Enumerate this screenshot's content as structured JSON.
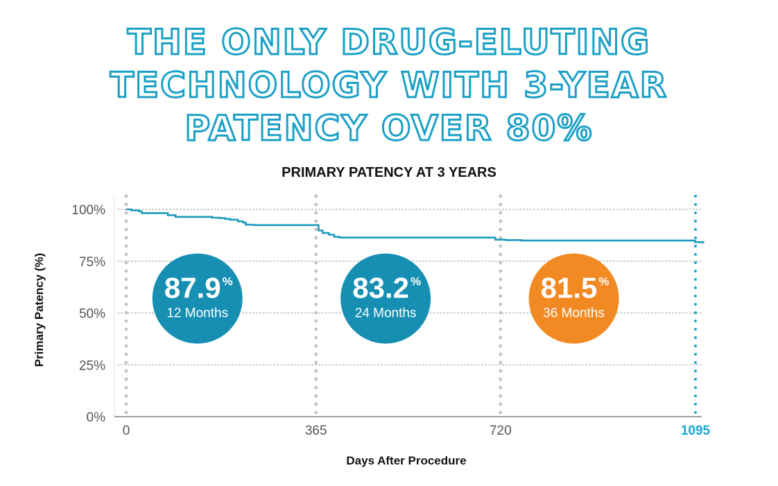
{
  "headline": {
    "line1": "THE ONLY DRUG-ELUTING",
    "line2": "TECHNOLOGY WITH 3-YEAR",
    "line3": "PATENCY OVER 80%"
  },
  "chart_data": {
    "type": "line",
    "title": "PRIMARY PATENCY AT 3 YEARS",
    "xlabel": "Days After Procedure",
    "ylabel": "Primary Patency (%)",
    "xlim": [
      0,
      1095
    ],
    "ylim": [
      0,
      100
    ],
    "xticks": [
      {
        "value": 0,
        "label": "0"
      },
      {
        "value": 365,
        "label": "365"
      },
      {
        "value": 720,
        "label": "720"
      },
      {
        "value": 1095,
        "label": "1095",
        "highlight": true
      }
    ],
    "yticks": [
      {
        "value": 100,
        "label": "100%"
      },
      {
        "value": 75,
        "label": "75%"
      },
      {
        "value": 50,
        "label": "50%"
      },
      {
        "value": 25,
        "label": "25%"
      },
      {
        "value": 0,
        "label": "0%"
      }
    ],
    "grid": true,
    "series": [
      {
        "color": "#1a9bbd",
        "step": true,
        "points": [
          [
            0,
            100
          ],
          [
            10,
            99.5
          ],
          [
            25,
            99
          ],
          [
            30,
            98.2
          ],
          [
            75,
            98.2
          ],
          [
            80,
            97.2
          ],
          [
            95,
            96.4
          ],
          [
            160,
            96.4
          ],
          [
            165,
            96.0
          ],
          [
            180,
            95.8
          ],
          [
            190,
            95.4
          ],
          [
            200,
            95.0
          ],
          [
            215,
            94.2
          ],
          [
            225,
            93.6
          ],
          [
            230,
            92.6
          ],
          [
            245,
            92.4
          ],
          [
            260,
            92.4
          ],
          [
            360,
            92.4
          ],
          [
            370,
            89.8
          ],
          [
            378,
            88.6
          ],
          [
            390,
            87.8
          ],
          [
            400,
            86.8
          ],
          [
            410,
            86.4
          ],
          [
            705,
            86.4
          ],
          [
            710,
            85.4
          ],
          [
            720,
            85.4
          ],
          [
            730,
            85.2
          ],
          [
            760,
            85.0
          ],
          [
            1090,
            85.0
          ],
          [
            1094,
            84.2
          ],
          [
            1110,
            83.6
          ]
        ]
      }
    ],
    "annotations": [
      {
        "x": 137,
        "y": 57,
        "value": "87.9",
        "unit": "%",
        "label": "12 Months",
        "color": "#168fb3"
      },
      {
        "x": 499,
        "y": 57,
        "value": "83.2",
        "unit": "%",
        "label": "24 Months",
        "color": "#168fb3"
      },
      {
        "x": 861,
        "y": 57,
        "value": "81.5",
        "unit": "%",
        "label": "36 Months",
        "color": "#f28a24"
      }
    ],
    "colors": {
      "line": "#1a9bbd",
      "grid": "#c4c4c4",
      "axis_text": "#555555",
      "highlight": "#1aa5d8",
      "headline": "#1aa0c6"
    }
  }
}
